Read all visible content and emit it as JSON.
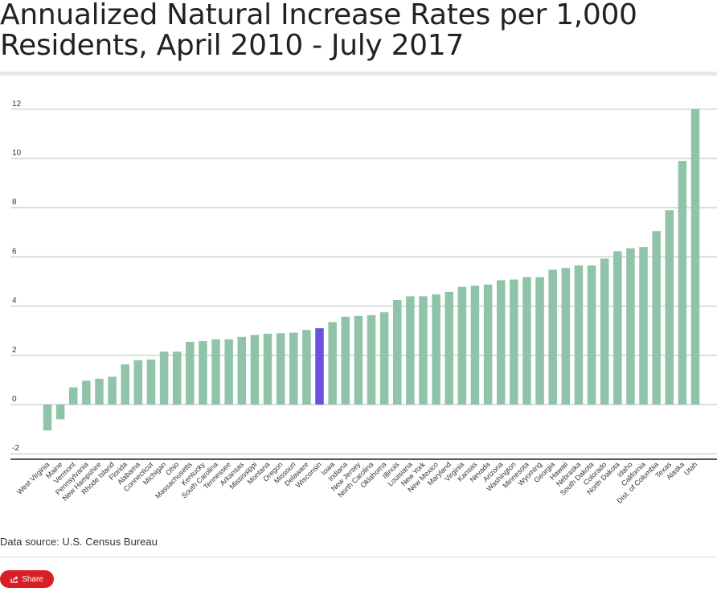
{
  "title": "Annualized Natural Increase Rates per 1,000 Residents, April 2010 - July 2017",
  "source": "Data source: U.S. Census Bureau",
  "share_label": "Share",
  "colors": {
    "bar": "#8fc4a8",
    "highlight": "#6b52de",
    "grid": "#bbbbbb",
    "axis": "#555555"
  },
  "chart_data": {
    "type": "bar",
    "title": "Annualized Natural Increase Rates per 1,000 Residents, April 2010 - July 2017",
    "xlabel": "",
    "ylabel": "",
    "ylim": [
      -2,
      12
    ],
    "yticks": [
      -2,
      0,
      2,
      4,
      6,
      8,
      10,
      12
    ],
    "highlight": "Wisconsin",
    "categories": [
      "West Virginia",
      "Maine",
      "Vermont",
      "Pennsylvania",
      "New Hampshire",
      "Rhode Island",
      "Florida",
      "Alabama",
      "Connecticut",
      "Michigan",
      "Ohio",
      "Massachusetts",
      "Kentucky",
      "South Carolina",
      "Tennessee",
      "Arkansas",
      "Mississippi",
      "Montana",
      "Oregon",
      "Missouri",
      "Delaware",
      "Wisconsin",
      "Iowa",
      "Indiana",
      "New Jersey",
      "North Carolina",
      "Oklahoma",
      "Illinois",
      "Louisiana",
      "New York",
      "New Mexico",
      "Maryland",
      "Virginia",
      "Kansas",
      "Nevada",
      "Arizona",
      "Washington",
      "Minnesota",
      "Wyoming",
      "Georgia",
      "Hawaii",
      "Nebraska",
      "South Dakota",
      "Colorado",
      "North Dakota",
      "Idaho",
      "California",
      "Dist. of Columbia",
      "Texas",
      "Alaska",
      "Utah"
    ],
    "values": [
      -1.05,
      -0.6,
      0.7,
      0.97,
      1.05,
      1.13,
      1.63,
      1.8,
      1.83,
      2.15,
      2.15,
      2.55,
      2.58,
      2.65,
      2.65,
      2.75,
      2.83,
      2.88,
      2.9,
      2.92,
      3.03,
      3.1,
      3.35,
      3.57,
      3.6,
      3.63,
      3.75,
      4.25,
      4.4,
      4.4,
      4.48,
      4.58,
      4.78,
      4.83,
      4.88,
      5.05,
      5.08,
      5.18,
      5.18,
      5.48,
      5.55,
      5.65,
      5.65,
      5.93,
      6.23,
      6.35,
      6.4,
      7.05,
      7.9,
      9.9,
      12.0
    ]
  }
}
